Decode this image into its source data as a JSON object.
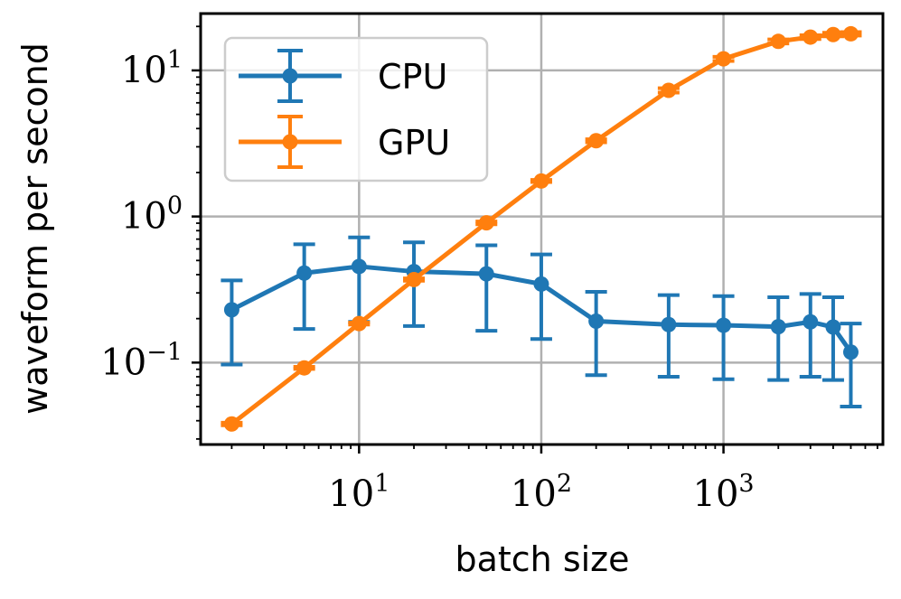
{
  "chart_data": {
    "type": "line",
    "xscale": "log",
    "yscale": "log",
    "xlabel": "batch size",
    "ylabel": "waveform per second",
    "xlim": [
      1.35,
      7500
    ],
    "ylim": [
      0.0275,
      24.5
    ],
    "grid": true,
    "legend_position": "top-left",
    "x_ticks": [
      {
        "value": 10,
        "base": "10",
        "exp": "1"
      },
      {
        "value": 100,
        "base": "10",
        "exp": "2"
      },
      {
        "value": 1000,
        "base": "10",
        "exp": "3"
      }
    ],
    "y_ticks": [
      {
        "value": 0.1,
        "base": "10",
        "exp": "−1"
      },
      {
        "value": 1,
        "base": "10",
        "exp": "0"
      },
      {
        "value": 10,
        "base": "10",
        "exp": "1"
      }
    ],
    "series": [
      {
        "name": "CPU",
        "color": "#1f77b4",
        "x": [
          2,
          5,
          10,
          20,
          50,
          100,
          200,
          500,
          1000,
          2000,
          3000,
          4000,
          5000
        ],
        "y": [
          0.23,
          0.41,
          0.455,
          0.42,
          0.405,
          0.345,
          0.192,
          0.182,
          0.18,
          0.176,
          0.19,
          0.175,
          0.118
        ],
        "yerr_low": [
          0.097,
          0.17,
          0.19,
          0.178,
          0.165,
          0.145,
          0.082,
          0.08,
          0.077,
          0.076,
          0.08,
          0.076,
          0.05
        ],
        "yerr_high": [
          0.365,
          0.645,
          0.72,
          0.665,
          0.635,
          0.55,
          0.305,
          0.29,
          0.285,
          0.28,
          0.295,
          0.28,
          0.185
        ]
      },
      {
        "name": "GPU",
        "color": "#ff7f0e",
        "x": [
          2,
          5,
          10,
          20,
          50,
          100,
          200,
          500,
          1000,
          2000,
          3000,
          4000,
          5000
        ],
        "y": [
          0.038,
          0.092,
          0.185,
          0.37,
          0.905,
          1.75,
          3.3,
          7.3,
          12.0,
          15.8,
          16.9,
          17.6,
          17.8
        ],
        "yerr_low": [
          0.0372,
          0.0905,
          0.182,
          0.363,
          0.885,
          1.72,
          3.22,
          7.05,
          11.6,
          15.3,
          16.4,
          17.1,
          17.3
        ],
        "yerr_high": [
          0.0388,
          0.0935,
          0.188,
          0.377,
          0.925,
          1.78,
          3.38,
          7.55,
          12.4,
          16.3,
          17.4,
          18.1,
          18.3
        ]
      }
    ]
  }
}
